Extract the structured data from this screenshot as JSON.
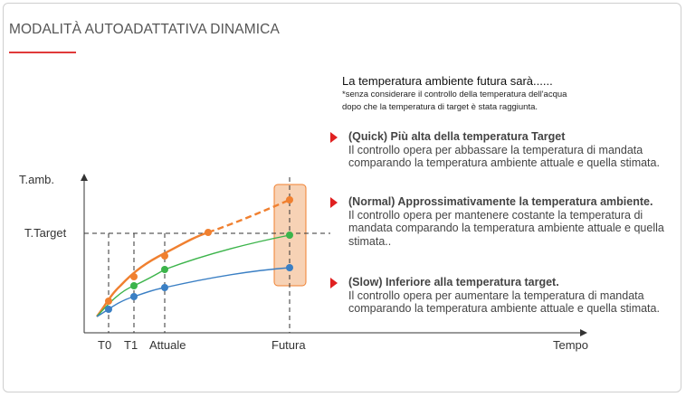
{
  "title": "MODALITÀ AUTOADATTATIVA DINAMICA",
  "intro": {
    "lead": "La temperatura ambiente futura sarà......",
    "note_line1": "*senza considerare il controllo della temperatura dell'acqua",
    "note_line2": "dopo che la temperatura di target è stata raggiunta."
  },
  "items": [
    {
      "heading": "(Quick) Più alta della temperatura Target",
      "body": "Il controllo opera per abbassare la temperatura di mandata comparando la temperatura ambiente attuale e quella stimata."
    },
    {
      "heading": "(Normal) Approssimativamente la temperatura ambiente.",
      "body": "Il controllo opera per mantenere costante la temperatura di mandata comparando la temperatura ambiente attuale e quella stimata.."
    },
    {
      "heading": "(Slow) Inferiore alla temperatura target.",
      "body": "Il controllo opera per aumentare la temperatura di mandata comparando la temperatura ambiente attuale e quella stimata."
    }
  ],
  "diagram": {
    "y_label": "T.amb.",
    "target_label": "T.Target",
    "x_label": "Tempo",
    "ticks": [
      "T0",
      "T1",
      "Attuale",
      "Futura"
    ]
  },
  "colors": {
    "quick": "#f08030",
    "normal": "#3cb44b",
    "slow": "#3a7fc4",
    "accent": "#e02020",
    "highlight_fill": "#f7d2b5",
    "highlight_stroke": "#f08030"
  }
}
